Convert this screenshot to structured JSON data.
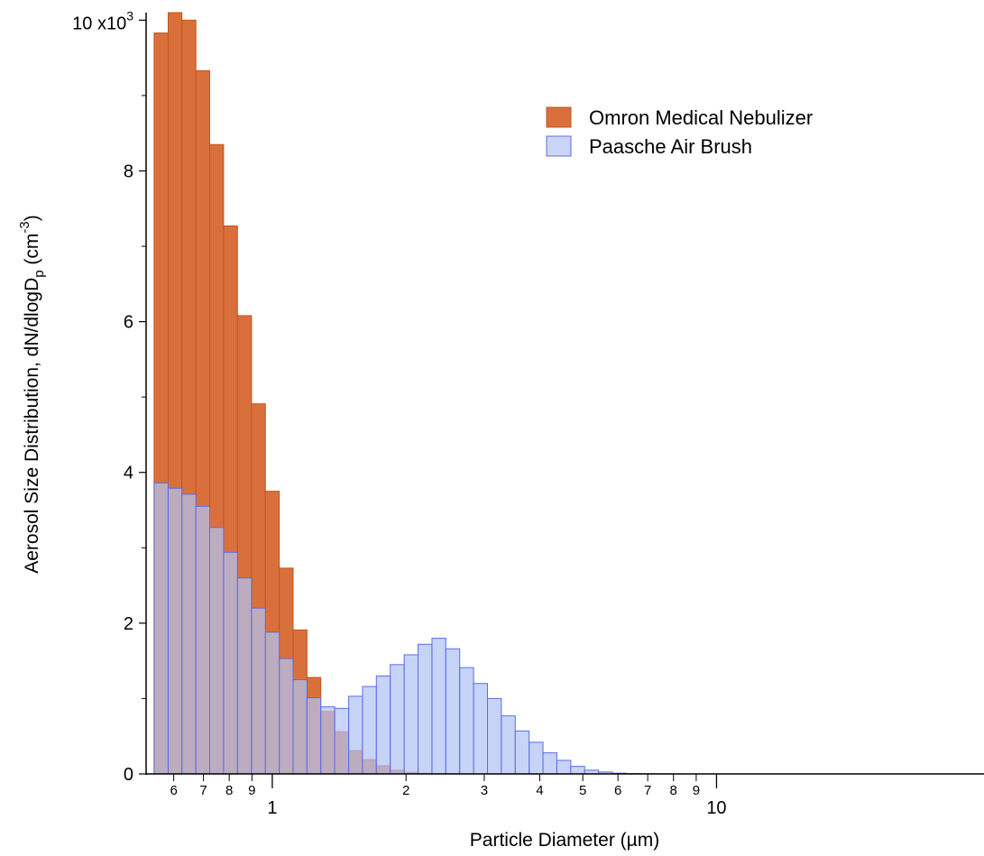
{
  "chart_data": {
    "type": "bar",
    "xscale": "log",
    "xlim": [
      0.52,
      40
    ],
    "ylim": [
      0,
      10100
    ],
    "grid": false,
    "legend_position": "top-right",
    "xlabel": "Particle Diameter (µm)",
    "ylabel": {
      "prefix": "Aerosol Size Distribution, dN/dlogD",
      "sub": "p",
      "mid": " (cm",
      "sup": "-3",
      "suffix": ")"
    },
    "y_multiplier_label": {
      "base": "10 x10",
      "exp": "3"
    },
    "y_ticks": [
      {
        "value": 0,
        "label": "0"
      },
      {
        "value": 2000,
        "label": "2"
      },
      {
        "value": 4000,
        "label": "4"
      },
      {
        "value": 6000,
        "label": "6"
      },
      {
        "value": 8000,
        "label": "8"
      }
    ],
    "x_major_ticks": [
      {
        "value": 1,
        "label": "1"
      },
      {
        "value": 10,
        "label": "10"
      }
    ],
    "x_minor_ticks": [
      {
        "value": 0.6,
        "label": "6"
      },
      {
        "value": 0.7,
        "label": "7"
      },
      {
        "value": 0.8,
        "label": "8"
      },
      {
        "value": 0.9,
        "label": "9"
      },
      {
        "value": 2,
        "label": "2"
      },
      {
        "value": 3,
        "label": "3"
      },
      {
        "value": 4,
        "label": "4"
      },
      {
        "value": 5,
        "label": "5"
      },
      {
        "value": 6,
        "label": "6"
      },
      {
        "value": 7,
        "label": "7"
      },
      {
        "value": 8,
        "label": "8"
      },
      {
        "value": 9,
        "label": "9"
      }
    ],
    "bin_edges": [
      0.542,
      0.583,
      0.626,
      0.673,
      0.723,
      0.777,
      0.835,
      0.898,
      0.965,
      1.037,
      1.114,
      1.197,
      1.286,
      1.382,
      1.486,
      1.596,
      1.715,
      1.843,
      1.981,
      2.129,
      2.288,
      2.458,
      2.642,
      2.839,
      3.051,
      3.278,
      3.523,
      3.786,
      4.068,
      4.371,
      4.698,
      5.048,
      5.425,
      5.829,
      6.264,
      6.732,
      7.234,
      7.774,
      8.354,
      8.977,
      9.647,
      10.366,
      11.14,
      11.97,
      12.86,
      13.82,
      14.86,
      15.96,
      17.15,
      18.43,
      19.81,
      21.29,
      22.88,
      24.58,
      26.42,
      28.39,
      30.51,
      32.78,
      35.23,
      37.86,
      40.0
    ],
    "series": [
      {
        "name": "Omron Medical Nebulizer",
        "color": "#d9703c",
        "stroke": "#c4541c",
        "values": [
          9830,
          10100,
          10000,
          9330,
          8350,
          7270,
          6080,
          4910,
          3750,
          2730,
          1910,
          1280,
          830,
          560,
          310,
          190,
          110,
          50,
          20,
          8,
          4,
          2,
          1,
          0,
          0,
          0,
          0,
          0,
          0,
          0,
          0,
          0,
          0,
          0,
          0,
          0,
          0,
          0,
          0,
          0,
          0,
          0,
          0,
          0,
          0,
          0,
          0,
          0,
          0,
          0,
          0,
          0,
          0,
          0,
          0,
          0,
          0,
          0,
          0,
          0
        ]
      },
      {
        "name": "Paasche Air Brush",
        "color": "#b2c2f4",
        "stroke": "#5a6ee6",
        "values": [
          3860,
          3790,
          3710,
          3550,
          3270,
          2940,
          2600,
          2200,
          1880,
          1530,
          1250,
          1010,
          890,
          870,
          1030,
          1160,
          1300,
          1450,
          1580,
          1720,
          1800,
          1660,
          1410,
          1200,
          1000,
          770,
          570,
          420,
          280,
          180,
          100,
          50,
          25,
          10,
          5,
          3,
          2,
          1,
          0,
          0,
          0,
          0,
          0,
          0,
          0,
          0,
          0,
          0,
          0,
          0,
          0,
          0,
          0,
          0,
          0,
          0,
          0,
          0,
          0,
          0
        ]
      }
    ]
  }
}
